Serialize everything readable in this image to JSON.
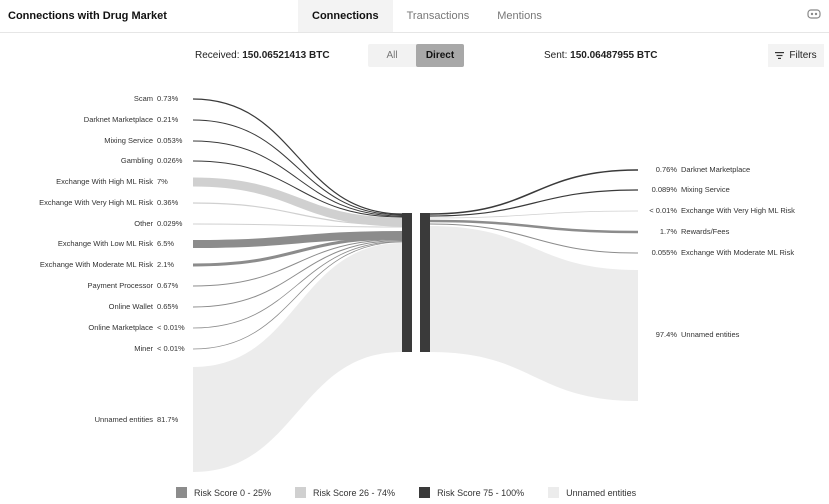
{
  "header": {
    "title": "Connections with Drug Market",
    "tabs": [
      {
        "label": "Connections",
        "active": true
      },
      {
        "label": "Transactions",
        "active": false
      },
      {
        "label": "Mentions",
        "active": false
      }
    ],
    "settings_icon": "settings-icon"
  },
  "summary": {
    "received_label": "Received:",
    "received_value": "150.06521413 BTC",
    "sent_label": "Sent:",
    "sent_value": "150.06487955 BTC"
  },
  "toggle": {
    "options": [
      {
        "label": "All",
        "active": false
      },
      {
        "label": "Direct",
        "active": true
      }
    ]
  },
  "filters": {
    "label": "Filters",
    "icon": "filters-icon"
  },
  "colors": {
    "low": "#8c8c8c",
    "medium": "#d0d0d0",
    "high": "#3a3a3a",
    "unnamed": "#ececec",
    "node": "#3a3a3a"
  },
  "incoming": [
    {
      "name": "Scam",
      "pct": "0.73%",
      "risk": "high"
    },
    {
      "name": "Darknet Marketplace",
      "pct": "0.21%",
      "risk": "high"
    },
    {
      "name": "Mixing Service",
      "pct": "0.053%",
      "risk": "high"
    },
    {
      "name": "Gambling",
      "pct": "0.026%",
      "risk": "high"
    },
    {
      "name": "Exchange With High ML Risk",
      "pct": "7%",
      "risk": "medium"
    },
    {
      "name": "Exchange With Very High ML Risk",
      "pct": "0.36%",
      "risk": "medium"
    },
    {
      "name": "Other",
      "pct": "0.029%",
      "risk": "medium"
    },
    {
      "name": "Exchange With Low ML Risk",
      "pct": "6.5%",
      "risk": "low"
    },
    {
      "name": "Exchange With Moderate ML Risk",
      "pct": "2.1%",
      "risk": "low"
    },
    {
      "name": "Payment Processor",
      "pct": "0.67%",
      "risk": "low"
    },
    {
      "name": "Online Wallet",
      "pct": "0.65%",
      "risk": "low"
    },
    {
      "name": "Online Marketplace",
      "pct": "< 0.01%",
      "risk": "low"
    },
    {
      "name": "Miner",
      "pct": "< 0.01%",
      "risk": "low"
    },
    {
      "name": "Unnamed entities",
      "pct": "81.7%",
      "risk": "unnamed"
    }
  ],
  "outgoing": [
    {
      "name": "Darknet Marketplace",
      "pct": "0.76%",
      "risk": "high"
    },
    {
      "name": "Mixing Service",
      "pct": "0.089%",
      "risk": "high"
    },
    {
      "name": "Exchange With Very High ML Risk",
      "pct": "< 0.01%",
      "risk": "medium"
    },
    {
      "name": "Rewards/Fees",
      "pct": "1.7%",
      "risk": "low"
    },
    {
      "name": "Exchange With Moderate ML Risk",
      "pct": "0.055%",
      "risk": "low"
    },
    {
      "name": "Unnamed entities",
      "pct": "97.4%",
      "risk": "unnamed"
    }
  ],
  "legend": [
    {
      "label": "Risk Score 0 - 25%",
      "risk": "low"
    },
    {
      "label": "Risk Score 26 - 74%",
      "risk": "medium"
    },
    {
      "label": "Risk Score 75 - 100%",
      "risk": "high"
    },
    {
      "label": "Unnamed entities",
      "risk": "unnamed"
    }
  ]
}
